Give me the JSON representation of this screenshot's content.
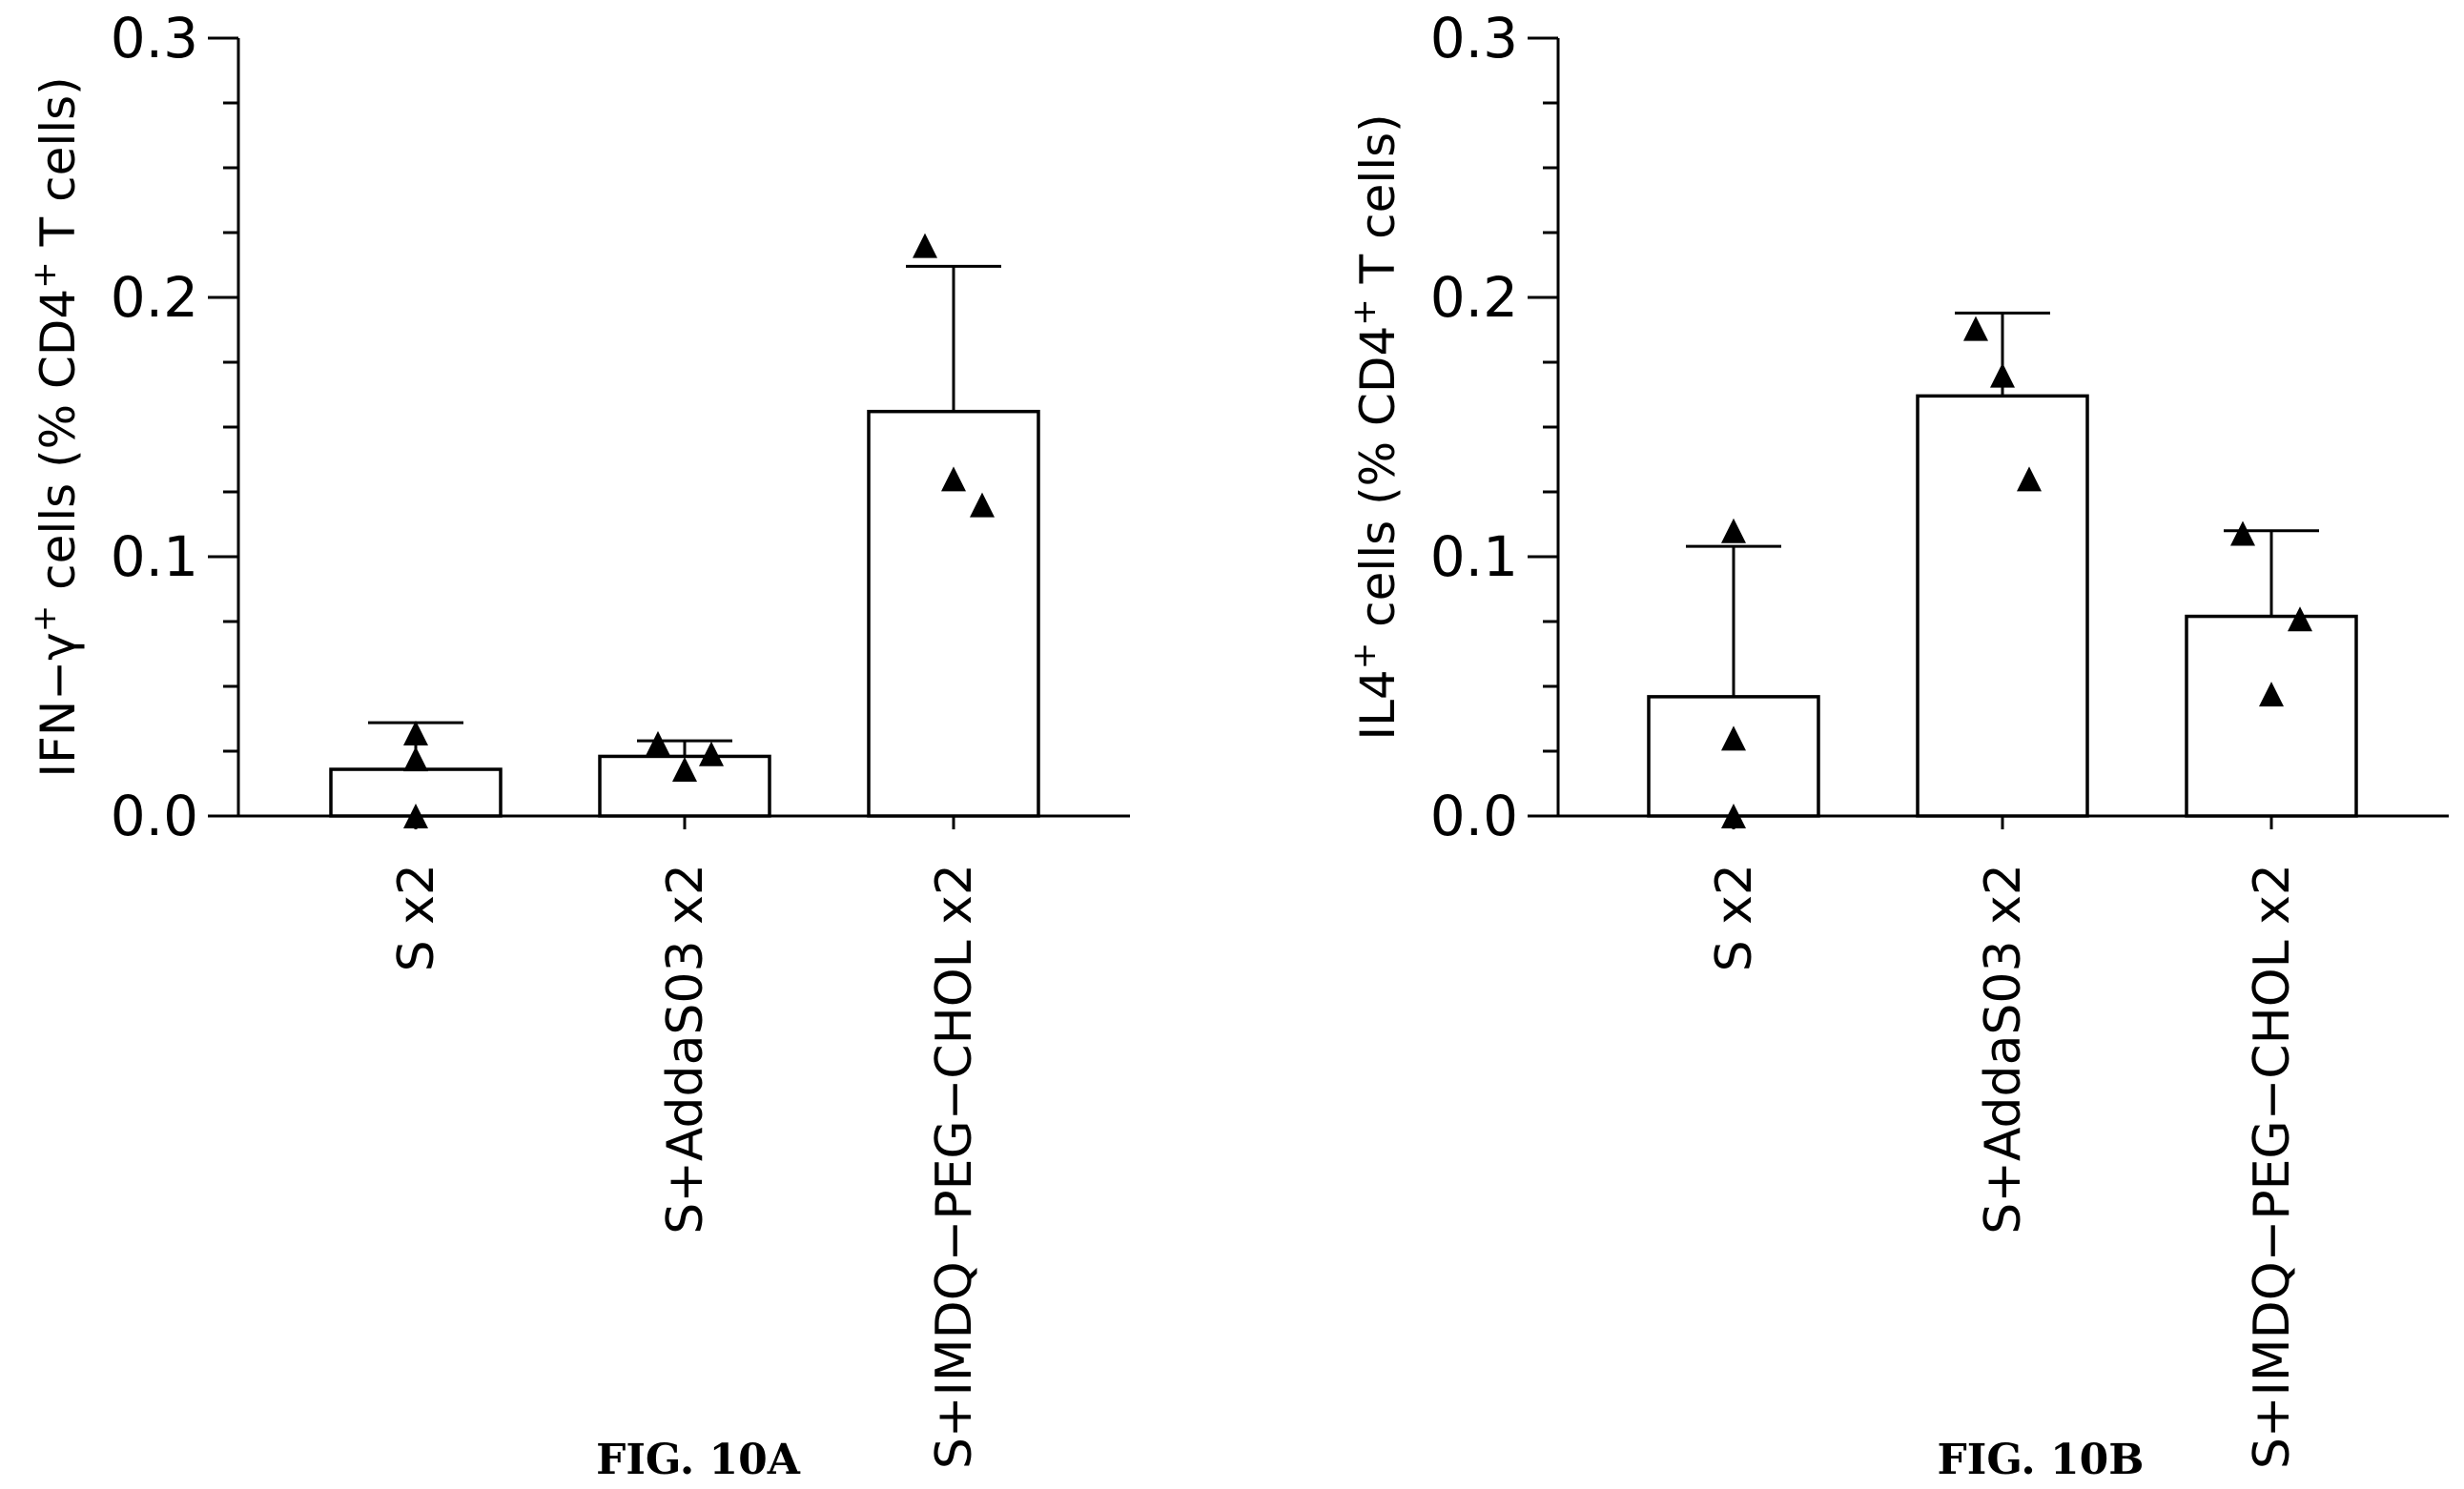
{
  "chart_data": [
    {
      "type": "bar",
      "panel": "A",
      "caption": "FIG. 10A",
      "ylabel_main": "IFN−γ",
      "ylabel_sup": "+",
      "ylabel_tail": " cells (% CD4",
      "ylabel_sup2": "+",
      "ylabel_end": " T cells)",
      "ylim": [
        0,
        0.3
      ],
      "yticks": [
        {
          "value": 0.0,
          "label": "0.0"
        },
        {
          "value": 0.1,
          "label": "0.1"
        },
        {
          "value": 0.2,
          "label": "0.2"
        },
        {
          "value": 0.3,
          "label": "0.3"
        }
      ],
      "minor_step": 0.025,
      "categories": [
        "S  x2",
        "S+AddaS03  x2",
        "S+IMDQ−PEG−CHOL  x2"
      ],
      "values": [
        0.018,
        0.023,
        0.156
      ],
      "error_upper": [
        0.036,
        0.029,
        0.212
      ],
      "points": [
        [
          0.032,
          0.022,
          0.0
        ],
        [
          0.028,
          0.018,
          0.024
        ],
        [
          0.22,
          0.12,
          0.13
        ]
      ]
    },
    {
      "type": "bar",
      "panel": "B",
      "caption": "FIG. 10B",
      "ylabel_main": "IL4",
      "ylabel_sup": "+",
      "ylabel_tail": " cells (% CD4",
      "ylabel_sup2": "+",
      "ylabel_end": " T cells)",
      "ylim": [
        0,
        0.3
      ],
      "yticks": [
        {
          "value": 0.0,
          "label": "0.0"
        },
        {
          "value": 0.1,
          "label": "0.1"
        },
        {
          "value": 0.2,
          "label": "0.2"
        },
        {
          "value": 0.3,
          "label": "0.3"
        }
      ],
      "minor_step": 0.025,
      "categories": [
        "S  x2",
        "S+AddaS03  x2",
        "S+IMDQ−PEG−CHOL  x2"
      ],
      "values": [
        0.046,
        0.162,
        0.077
      ],
      "error_upper": [
        0.104,
        0.194,
        0.11
      ],
      "points": [
        [
          0.11,
          0.03,
          0.0
        ],
        [
          0.188,
          0.17,
          0.13
        ],
        [
          0.109,
          0.076,
          0.047
        ]
      ]
    }
  ]
}
